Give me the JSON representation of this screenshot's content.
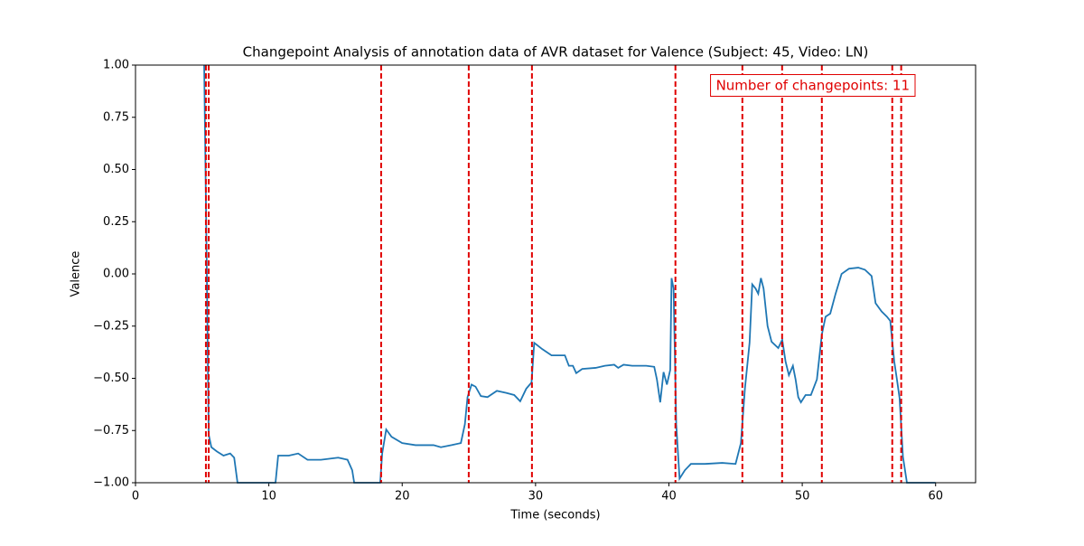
{
  "chart_data": {
    "type": "line",
    "title": "Changepoint Analysis of annotation data of AVR dataset for Valence (Subject: 45, Video: LN)",
    "x_label": "Time (seconds)",
    "y_label": "Valence",
    "x": [
      5.15,
      5.35,
      5.49,
      5.69,
      6.1,
      6.6,
      7.1,
      7.4,
      7.65,
      10.5,
      10.7,
      11.5,
      12.2,
      12.9,
      13.9,
      15.2,
      15.9,
      16.25,
      16.4,
      18.35,
      18.5,
      18.8,
      19.2,
      20.0,
      21.0,
      22.35,
      22.9,
      23.7,
      24.4,
      24.7,
      24.9,
      25.2,
      25.5,
      25.9,
      26.4,
      27.1,
      27.8,
      28.4,
      28.85,
      29.3,
      29.7,
      29.9,
      30.5,
      31.2,
      32.2,
      32.5,
      32.8,
      33.05,
      33.5,
      34.5,
      35.2,
      35.9,
      36.2,
      36.6,
      37.25,
      38.3,
      38.9,
      39.1,
      39.35,
      39.6,
      39.85,
      40.1,
      40.2,
      40.35,
      40.55,
      40.8,
      41.2,
      41.65,
      42.7,
      44.0,
      45.0,
      45.4,
      45.7,
      46.05,
      46.25,
      46.5,
      46.7,
      46.9,
      47.1,
      47.4,
      47.7,
      48.2,
      48.5,
      48.75,
      49.0,
      49.3,
      49.5,
      49.7,
      49.9,
      50.25,
      50.65,
      51.1,
      51.47,
      51.75,
      52.1,
      52.5,
      52.95,
      53.5,
      54.2,
      54.7,
      55.2,
      55.5,
      55.95,
      56.35,
      56.6,
      56.9,
      57.1,
      57.3,
      57.55,
      57.85,
      60.0
    ],
    "series": [
      {
        "name": "Valence",
        "color": "#1f77b4",
        "values": [
          1.0,
          0.0,
          -0.77,
          -0.83,
          -0.85,
          -0.87,
          -0.86,
          -0.88,
          -1.0,
          -1.0,
          -0.87,
          -0.87,
          -0.86,
          -0.89,
          -0.89,
          -0.88,
          -0.89,
          -0.94,
          -1.0,
          -1.0,
          -0.86,
          -0.745,
          -0.78,
          -0.81,
          -0.82,
          -0.82,
          -0.83,
          -0.82,
          -0.81,
          -0.72,
          -0.59,
          -0.53,
          -0.54,
          -0.585,
          -0.59,
          -0.56,
          -0.57,
          -0.58,
          -0.61,
          -0.55,
          -0.52,
          -0.33,
          -0.36,
          -0.39,
          -0.39,
          -0.44,
          -0.44,
          -0.475,
          -0.455,
          -0.45,
          -0.44,
          -0.435,
          -0.45,
          -0.435,
          -0.44,
          -0.44,
          -0.445,
          -0.505,
          -0.615,
          -0.47,
          -0.53,
          -0.46,
          -0.02,
          -0.07,
          -0.72,
          -0.98,
          -0.94,
          -0.91,
          -0.91,
          -0.905,
          -0.91,
          -0.81,
          -0.55,
          -0.33,
          -0.05,
          -0.07,
          -0.095,
          -0.02,
          -0.07,
          -0.25,
          -0.325,
          -0.355,
          -0.315,
          -0.42,
          -0.485,
          -0.44,
          -0.505,
          -0.59,
          -0.615,
          -0.58,
          -0.58,
          -0.505,
          -0.29,
          -0.205,
          -0.19,
          -0.095,
          0.0,
          0.025,
          0.03,
          0.02,
          -0.01,
          -0.14,
          -0.18,
          -0.205,
          -0.225,
          -0.42,
          -0.505,
          -0.595,
          -0.875,
          -1.0,
          -1.0
        ]
      }
    ],
    "changepoints": [
      5.28,
      5.49,
      18.42,
      24.99,
      29.73,
      40.49,
      45.51,
      48.49,
      51.47,
      56.75,
      57.42
    ],
    "changepoint_color": "#e00000",
    "annotation": "Number of changepoints: 11",
    "xlim": [
      0,
      63
    ],
    "ylim": [
      -1,
      1
    ],
    "xticks": [
      0,
      10,
      20,
      30,
      40,
      50,
      60
    ],
    "yticks": [
      {
        "value": -1,
        "label": "−1.00"
      },
      {
        "value": -0.75,
        "label": "−0.75"
      },
      {
        "value": -0.5,
        "label": "−0.50"
      },
      {
        "value": -0.25,
        "label": "−0.25"
      },
      {
        "value": 0,
        "label": "0.00"
      },
      {
        "value": 0.25,
        "label": "0.25"
      },
      {
        "value": 0.5,
        "label": "0.50"
      },
      {
        "value": 0.75,
        "label": "0.75"
      },
      {
        "value": 1,
        "label": "1.00"
      }
    ]
  }
}
